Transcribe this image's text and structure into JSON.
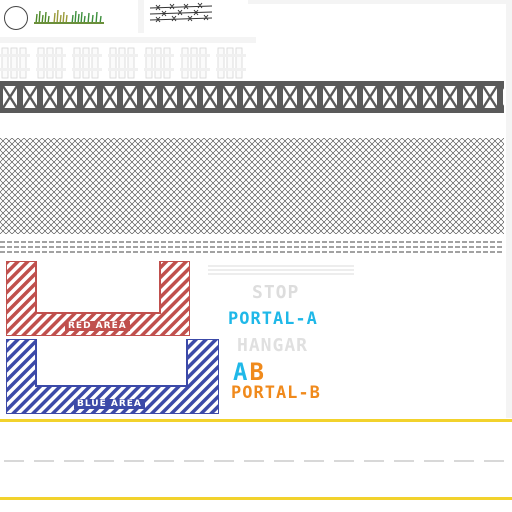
{
  "colors": {
    "red_zone": "#c0504d",
    "blue_zone": "#3c4aa8",
    "truss": "#555555",
    "portal_a": "#1fb8e8",
    "portal_b": "#f08a1c",
    "road_yellow": "#f2d22c",
    "faint_text": "#dddddd"
  },
  "icons": {
    "circle": "circle-outline-icon",
    "grass": "grass-tuft-icon",
    "barbed_wire": "barbed-wire-icon",
    "fence": "picket-fence-icon",
    "truss": "truss-girder-icon",
    "mesh": "chain-link-mesh-icon"
  },
  "zones": {
    "red": {
      "label": "RED AREA"
    },
    "blue": {
      "label": "BLUE AREA"
    }
  },
  "signs": {
    "stop": "STOP",
    "portal_a": "PORTAL-A",
    "hangar": "HANGAR",
    "ab": "AB",
    "portal_b": "PORTAL-B"
  }
}
